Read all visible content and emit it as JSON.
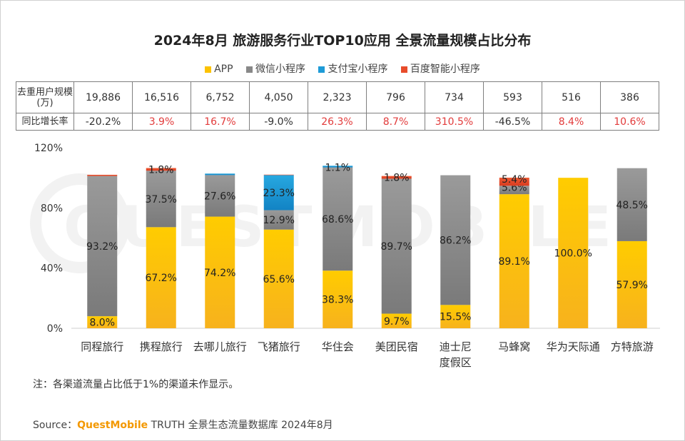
{
  "title": "2024年8月 旅游服务行业TOP10应用 全景流量规模占比分布",
  "legend": [
    {
      "name": "APP",
      "color": "#fcc200"
    },
    {
      "name": "微信小程序",
      "color": "#888888"
    },
    {
      "name": "支付宝小程序",
      "color": "#1e9bd7"
    },
    {
      "name": "百度智能小程序",
      "color": "#e84c2b"
    }
  ],
  "stats_table": {
    "row1_header": "去重用户规模(万)",
    "row2_header": "同比增长率",
    "users": [
      "19,886",
      "16,516",
      "6,752",
      "4,050",
      "2,323",
      "796",
      "734",
      "593",
      "516",
      "386"
    ],
    "growth": [
      "-20.2%",
      "3.9%",
      "16.7%",
      "-9.0%",
      "26.3%",
      "8.7%",
      "310.5%",
      "-46.5%",
      "8.4%",
      "10.6%"
    ]
  },
  "chart_data": {
    "type": "bar",
    "stacked": true,
    "categories": [
      "同程旅行",
      "携程旅行",
      "去哪儿旅行",
      "飞猪旅行",
      "华住会",
      "美团民宿",
      "迪士尼度假区",
      "马蜂窝",
      "华为天际通",
      "方特旅游"
    ],
    "category_lines": [
      [
        "同程旅行"
      ],
      [
        "携程旅行"
      ],
      [
        "去哪儿旅行"
      ],
      [
        "飞猪旅行"
      ],
      [
        "华住会"
      ],
      [
        "美团民宿"
      ],
      [
        "迪士尼",
        "度假区"
      ],
      [
        "马蜂窝"
      ],
      [
        "华为天际通"
      ],
      [
        "方特旅游"
      ]
    ],
    "series": [
      {
        "name": "APP",
        "color": "#fcc200",
        "values": [
          8.0,
          67.2,
          74.2,
          65.6,
          38.3,
          9.7,
          15.5,
          89.1,
          100.0,
          57.9
        ]
      },
      {
        "name": "微信小程序",
        "color": "#888888",
        "values": [
          93.2,
          37.5,
          27.6,
          12.9,
          68.6,
          89.7,
          86.2,
          5.6,
          0,
          48.5
        ]
      },
      {
        "name": "支付宝小程序",
        "color": "#1e9bd7",
        "values": [
          0,
          0,
          1.0,
          23.3,
          1.1,
          0,
          0,
          0,
          0,
          0
        ]
      },
      {
        "name": "百度智能小程序",
        "color": "#e84c2b",
        "values": [
          0.8,
          1.8,
          0,
          0.3,
          0,
          1.8,
          0,
          5.4,
          0,
          0
        ]
      }
    ],
    "labels": [
      [
        "8.0%",
        "67.2%",
        "74.2%",
        "65.6%",
        "38.3%",
        "9.7%",
        "15.5%",
        "89.1%",
        "100.0%",
        "57.9%"
      ],
      [
        "93.2%",
        "37.5%",
        "27.6%",
        "12.9%",
        "68.6%",
        "89.7%",
        "86.2%",
        "5.6%",
        "",
        "48.5%"
      ],
      [
        "",
        "",
        "",
        "23.3%",
        "1.1%",
        "",
        "",
        "",
        "",
        ""
      ],
      [
        "",
        "1.8%",
        "",
        "",
        "",
        "1.8%",
        "",
        "5.4%",
        "",
        ""
      ]
    ],
    "ytick_labels": [
      "0%",
      "40%",
      "80%",
      "120%"
    ],
    "ytick_values": [
      0,
      40,
      80,
      120
    ],
    "ylim": [
      0,
      120
    ]
  },
  "watermark": "QUESTMOBILE",
  "note": "注：各渠道流量占比低于1%的渠道未作显示。",
  "source": {
    "prefix": "Source：",
    "brand": "QuestMobile",
    "suffix": " TRUTH 全景生态流量数据库 2024年8月"
  }
}
